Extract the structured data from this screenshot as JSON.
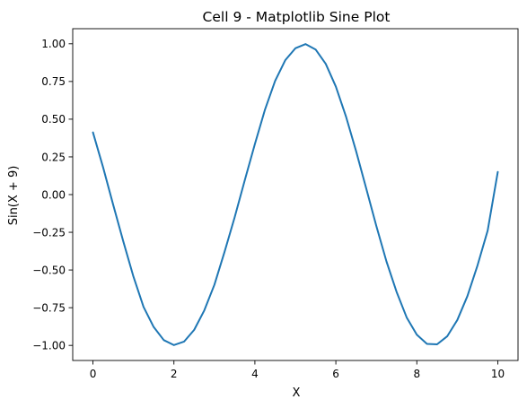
{
  "chart_data": {
    "type": "line",
    "title": "Cell 9 - Matplotlib Sine Plot",
    "xlabel": "X",
    "ylabel": "Sin(X + 9)",
    "xlim": [
      -0.5,
      10.5
    ],
    "ylim": [
      -1.1,
      1.1
    ],
    "x_ticks": [
      0,
      2,
      4,
      6,
      8,
      10
    ],
    "x_tick_labels": [
      "0",
      "2",
      "4",
      "6",
      "8",
      "10"
    ],
    "y_ticks": [
      -1.0,
      -0.75,
      -0.5,
      -0.25,
      0.0,
      0.25,
      0.5,
      0.75,
      1.0
    ],
    "y_tick_labels": [
      "−1.00",
      "−0.75",
      "−0.50",
      "−0.25",
      "0.00",
      "0.25",
      "0.50",
      "0.75",
      "1.00"
    ],
    "grid": false,
    "series": [
      {
        "color": "#1f77b4",
        "x": [
          0,
          0.25,
          0.5,
          0.75,
          1,
          1.25,
          1.5,
          1.75,
          2,
          2.25,
          2.5,
          2.75,
          3,
          3.25,
          3.5,
          3.75,
          4,
          4.25,
          4.5,
          4.75,
          5,
          5.25,
          5.5,
          5.75,
          6,
          6.25,
          6.5,
          6.75,
          7,
          7.25,
          7.5,
          7.75,
          8,
          8.25,
          8.5,
          8.75,
          9,
          9.25,
          9.5,
          9.75,
          10
        ],
        "y": [
          0.412,
          0.181,
          -0.068,
          -0.311,
          -0.544,
          -0.745,
          -0.878,
          -0.965,
          -0.998,
          -0.975,
          -0.897,
          -0.768,
          -0.598,
          -0.38,
          -0.151,
          0.095,
          0.335,
          0.564,
          0.754,
          0.891,
          0.97,
          0.998,
          0.962,
          0.867,
          0.716,
          0.518,
          0.288,
          0.041,
          -0.208,
          -0.443,
          -0.645,
          -0.815,
          -0.929,
          -0.99,
          -0.993,
          -0.94,
          -0.832,
          -0.673,
          -0.469,
          -0.239,
          0.15
        ]
      }
    ]
  }
}
